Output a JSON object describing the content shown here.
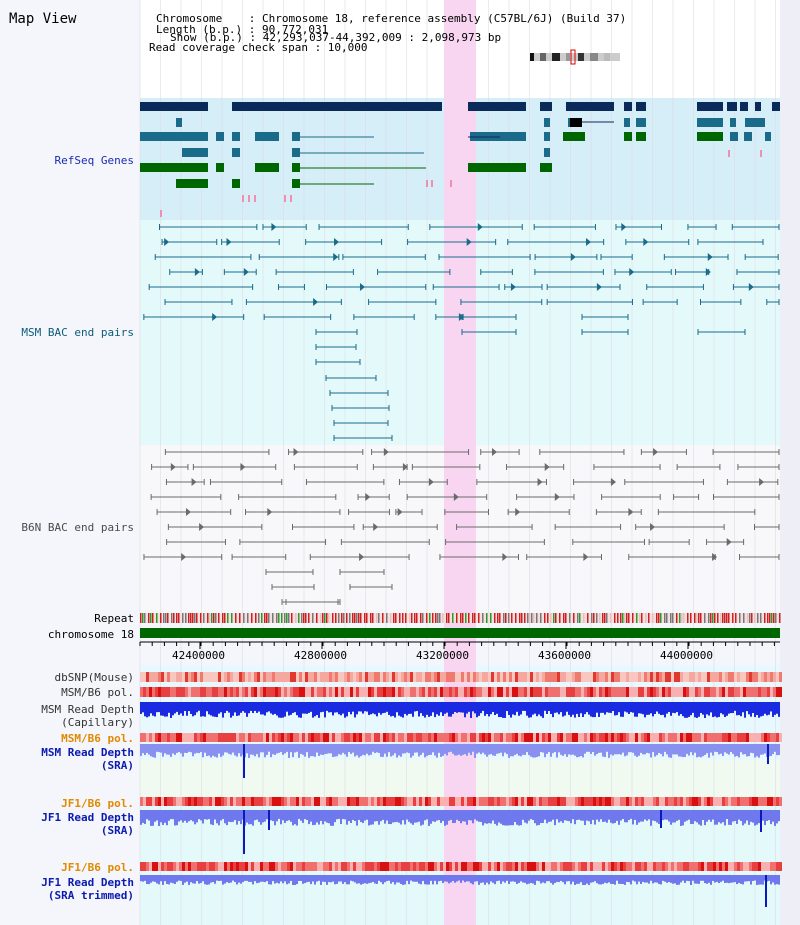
{
  "title": "Map View",
  "header": {
    "chromosome": "Chromosome    : Chromosome 18, reference assembly (C57BL/6J) (Build 37)",
    "length": "Length (b.p.) : 90,772,031",
    "show": "Show (b.p.) : 42,293,037-44,392,009 : 2,098,973 bp",
    "span": "Read coverage check span : 10,000"
  },
  "tracks": {
    "refseq": "RefSeq Genes",
    "msm_bac": "MSM BAC end pairs",
    "b6n_bac": "B6N BAC end pairs",
    "repeat": "Repeat",
    "chrom": "chromosome 18",
    "dbsnp": "dbSNP(Mouse)",
    "msm_b6_pol_a": "MSM/B6 pol.",
    "msm_depth_cap_1": "MSM Read Depth",
    "msm_depth_cap_2": "(Capillary)",
    "msm_b6_pol_b": "MSM/B6 pol.",
    "msm_depth_sra_1": "MSM Read Depth",
    "msm_depth_sra_2": "(SRA)",
    "jf1_pol_a": "JF1/B6 pol.",
    "jf1_depth_sra_1": "JF1 Read Depth",
    "jf1_depth_sra_2": "(SRA)",
    "jf1_pol_b": "JF1/B6 pol.",
    "jf1_depth_trim_1": "JF1 Read Depth",
    "jf1_depth_trim_2": "(SRA trimmed)"
  },
  "axis": {
    "ticks": [
      "42400000",
      "42800000",
      "43200000",
      "43600000",
      "44000000"
    ]
  },
  "colors": {
    "highlight": "#f8d6f2",
    "refseq_bg": "#d6eef8",
    "msm_bg": "#e4fafa",
    "navy": "#0a2a5a",
    "teal": "#1a6a8a",
    "green": "#006600",
    "pink": "#f090b0"
  }
}
